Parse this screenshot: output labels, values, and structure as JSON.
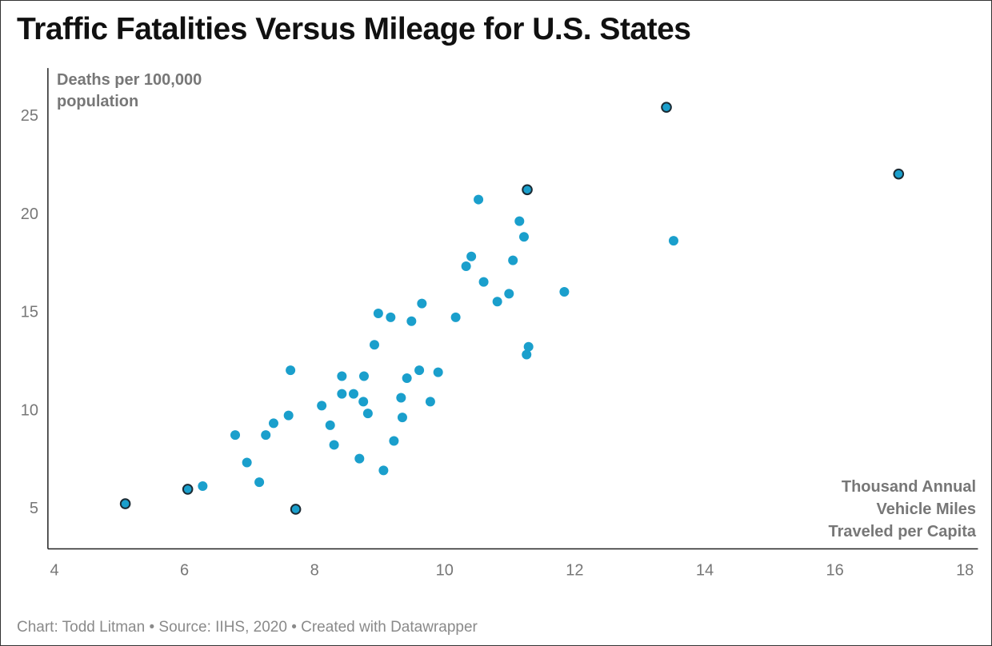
{
  "title": "Traffic Fatalities Versus Mileage for U.S. States",
  "footer": "Chart: Todd Litman • Source: IIHS, 2020 • Created with Datawrapper",
  "chart_data": {
    "type": "scatter",
    "title": "Traffic Fatalities Versus Mileage for U.S. States",
    "ylabel": [
      "Deaths per 100,000",
      "population"
    ],
    "xlabel": [
      "Thousand Annual",
      "Vehicle Miles",
      "Traveled per Capita"
    ],
    "xlim": [
      3.9,
      18.2
    ],
    "ylim": [
      2.9,
      27.4
    ],
    "xticks": [
      4,
      6,
      8,
      10,
      12,
      14,
      16,
      18
    ],
    "yticks": [
      5,
      10,
      15,
      20,
      25
    ],
    "grid": false,
    "colors": {
      "point": "#1a9fcc",
      "highlight_stroke": "#1b2a33"
    },
    "points": [
      {
        "x": 5.09,
        "y": 5.2,
        "highlight": true
      },
      {
        "x": 6.05,
        "y": 5.94,
        "highlight": true
      },
      {
        "x": 6.28,
        "y": 6.1
      },
      {
        "x": 7.71,
        "y": 4.92,
        "highlight": true
      },
      {
        "x": 6.78,
        "y": 8.7
      },
      {
        "x": 6.96,
        "y": 7.3
      },
      {
        "x": 7.15,
        "y": 6.3
      },
      {
        "x": 7.25,
        "y": 8.7
      },
      {
        "x": 7.37,
        "y": 9.3
      },
      {
        "x": 7.6,
        "y": 9.7
      },
      {
        "x": 7.63,
        "y": 12.0
      },
      {
        "x": 8.11,
        "y": 10.2
      },
      {
        "x": 8.24,
        "y": 9.2
      },
      {
        "x": 8.3,
        "y": 8.2
      },
      {
        "x": 8.42,
        "y": 11.7
      },
      {
        "x": 8.42,
        "y": 10.8
      },
      {
        "x": 8.6,
        "y": 10.8
      },
      {
        "x": 8.69,
        "y": 7.5
      },
      {
        "x": 8.75,
        "y": 10.4
      },
      {
        "x": 8.76,
        "y": 11.7
      },
      {
        "x": 8.82,
        "y": 9.8
      },
      {
        "x": 8.92,
        "y": 13.3
      },
      {
        "x": 8.98,
        "y": 14.9
      },
      {
        "x": 9.06,
        "y": 6.9
      },
      {
        "x": 9.17,
        "y": 14.7
      },
      {
        "x": 9.22,
        "y": 8.4
      },
      {
        "x": 9.33,
        "y": 10.6
      },
      {
        "x": 9.35,
        "y": 9.6
      },
      {
        "x": 9.42,
        "y": 11.6
      },
      {
        "x": 9.49,
        "y": 14.5
      },
      {
        "x": 9.61,
        "y": 12.0
      },
      {
        "x": 9.65,
        "y": 15.4
      },
      {
        "x": 9.78,
        "y": 10.4
      },
      {
        "x": 9.9,
        "y": 11.9
      },
      {
        "x": 10.17,
        "y": 14.7
      },
      {
        "x": 10.33,
        "y": 17.3
      },
      {
        "x": 10.41,
        "y": 17.8
      },
      {
        "x": 10.52,
        "y": 20.7
      },
      {
        "x": 10.6,
        "y": 16.5
      },
      {
        "x": 10.81,
        "y": 15.5
      },
      {
        "x": 10.99,
        "y": 15.9
      },
      {
        "x": 11.05,
        "y": 17.6
      },
      {
        "x": 11.15,
        "y": 19.6
      },
      {
        "x": 11.22,
        "y": 18.8
      },
      {
        "x": 11.26,
        "y": 12.8
      },
      {
        "x": 11.29,
        "y": 13.2
      },
      {
        "x": 11.27,
        "y": 21.2,
        "highlight": true
      },
      {
        "x": 11.84,
        "y": 16.0
      },
      {
        "x": 13.41,
        "y": 25.4,
        "highlight": true
      },
      {
        "x": 13.52,
        "y": 18.6
      },
      {
        "x": 16.98,
        "y": 22.0,
        "highlight": true
      }
    ]
  }
}
